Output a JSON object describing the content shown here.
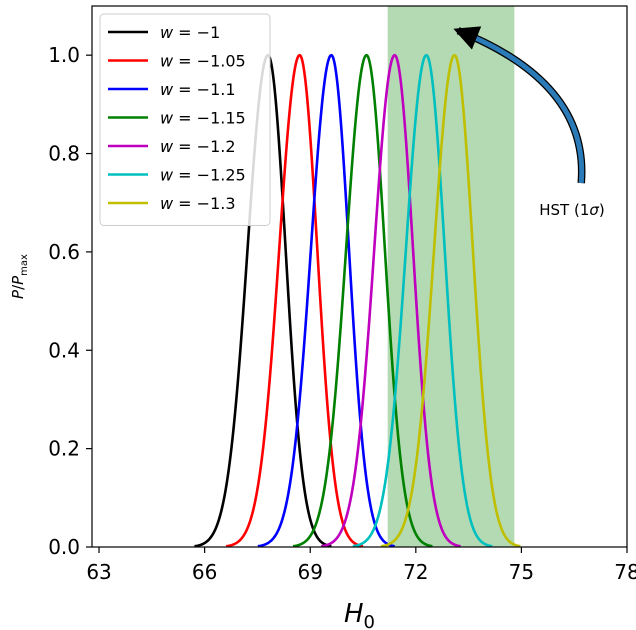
{
  "chart_data": {
    "type": "line",
    "xlabel": "H0",
    "ylabel": "P/Pmax",
    "xlim": [
      62.8,
      78.0
    ],
    "ylim": [
      0.0,
      1.1
    ],
    "xticks": [
      "63",
      "66",
      "69",
      "72",
      "75",
      "78"
    ],
    "yticks": [
      "0.0",
      "0.2",
      "0.4",
      "0.6",
      "0.8",
      "1.0"
    ],
    "grid": false,
    "legend_position": "top-left",
    "shaded_band": {
      "label": "HST (1σ)",
      "x_range": [
        71.2,
        74.8
      ],
      "color": "#b3dab3"
    },
    "annotation": {
      "text": "HST (1σ)",
      "arrow_from": [
        76.7,
        0.74
      ],
      "arrow_to": [
        73.2,
        1.05
      ],
      "arrow_color": "#2b7bb9"
    },
    "series": [
      {
        "name": "w = −1",
        "color": "#000000",
        "peak": 67.8,
        "sigma_left": 0.58,
        "sigma_right": 0.5
      },
      {
        "name": "w = −1.05",
        "color": "#ff0000",
        "peak": 68.7,
        "sigma_left": 0.58,
        "sigma_right": 0.5
      },
      {
        "name": "w = −1.1",
        "color": "#0000ff",
        "peak": 69.6,
        "sigma_left": 0.58,
        "sigma_right": 0.5
      },
      {
        "name": "w = −1.15",
        "color": "#008000",
        "peak": 70.6,
        "sigma_left": 0.58,
        "sigma_right": 0.52
      },
      {
        "name": "w = −1.2",
        "color": "#bf00bf",
        "peak": 71.4,
        "sigma_left": 0.58,
        "sigma_right": 0.52
      },
      {
        "name": "w = −1.25",
        "color": "#00bfbf",
        "peak": 72.3,
        "sigma_left": 0.58,
        "sigma_right": 0.52
      },
      {
        "name": "w = −1.3",
        "color": "#bfbf00",
        "peak": 73.1,
        "sigma_left": 0.58,
        "sigma_right": 0.52
      }
    ]
  }
}
